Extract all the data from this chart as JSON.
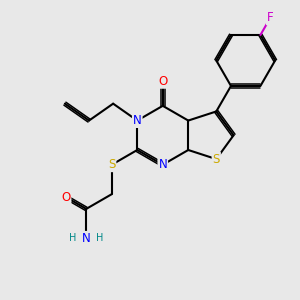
{
  "bg_color": "#e8e8e8",
  "bond_color": "#000000",
  "atom_colors": {
    "N": "#0000ff",
    "O": "#ff0000",
    "S": "#ccaa00",
    "F": "#cc00cc",
    "C": "#000000",
    "H": "#008888"
  },
  "lw": 1.5,
  "dbo": 0.018,
  "fs": 8.5
}
